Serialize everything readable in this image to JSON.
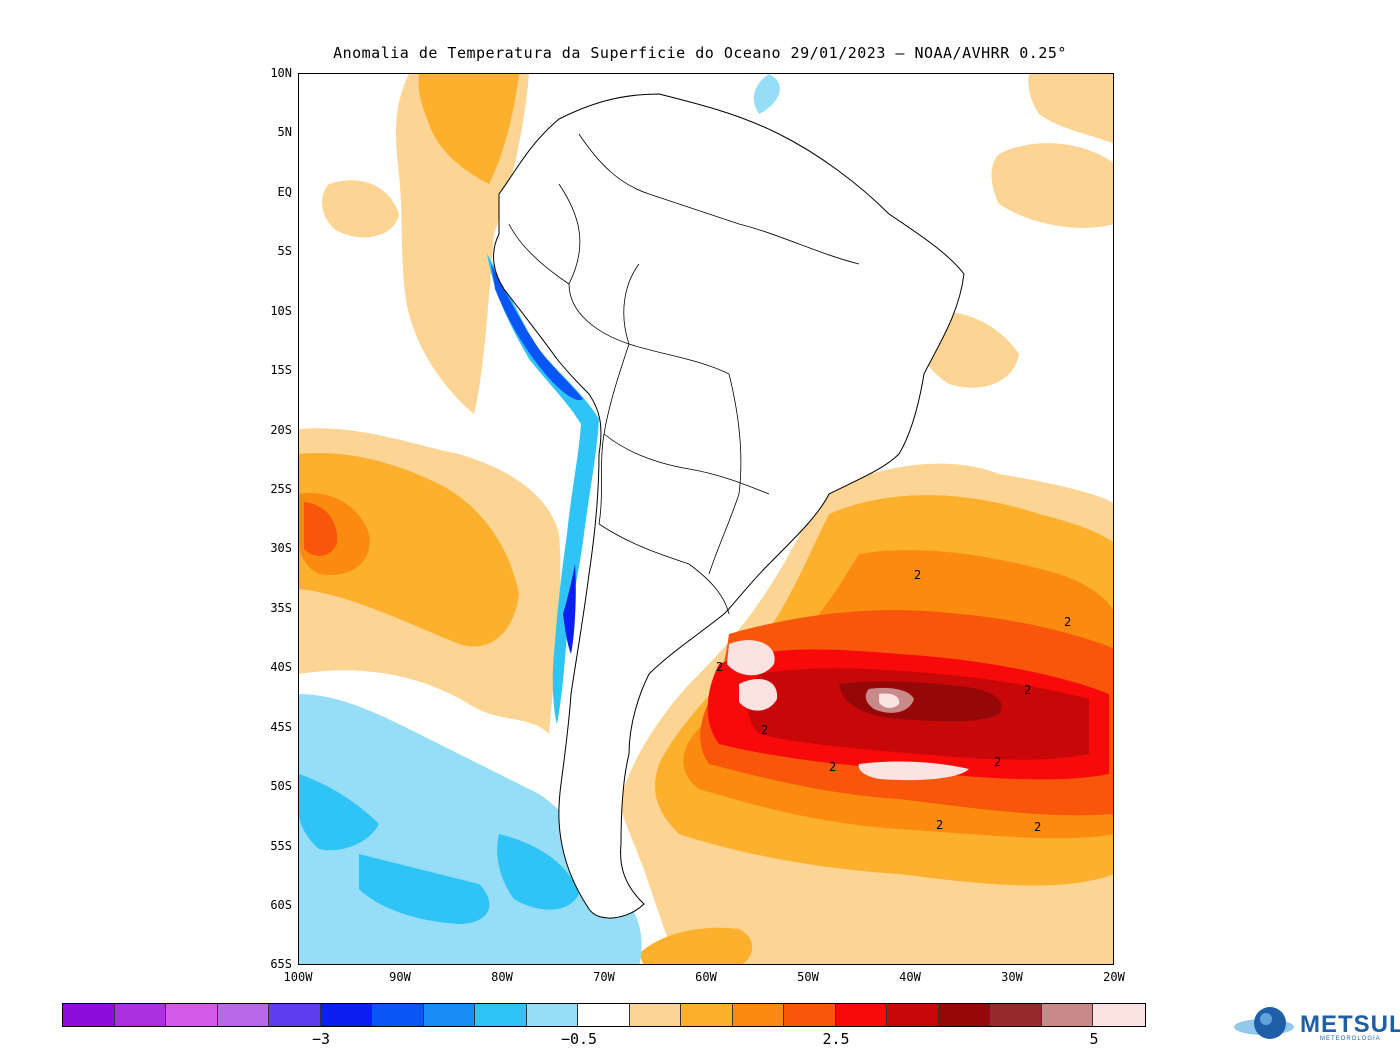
{
  "title": "Anomalia de Temperatura da Superficie do Oceano 29/01/2023 – NOAA/AVHRR 0.25°",
  "lat_labels": [
    "10N",
    "5N",
    "EQ",
    "5S",
    "10S",
    "15S",
    "20S",
    "25S",
    "30S",
    "35S",
    "40S",
    "45S",
    "50S",
    "55S",
    "60S",
    "65S"
  ],
  "lon_labels": [
    "100W",
    "90W",
    "80W",
    "70W",
    "60W",
    "50W",
    "40W",
    "30W",
    "20W"
  ],
  "colorbar": {
    "colors": [
      "#8f0ddc",
      "#ab31e0",
      "#d45ae8",
      "#b869e8",
      "#5e3cf0",
      "#0a1ff0",
      "#0a55f5",
      "#1a8cf5",
      "#2fc4f5",
      "#96def8",
      "#ffffff",
      "#fcd494",
      "#fcb02e",
      "#fb8b0f",
      "#f8560b",
      "#f80a0a",
      "#c80808",
      "#960808",
      "#962a2a",
      "#c88a88",
      "#fce2e0"
    ],
    "labels": [
      "−3",
      "−0.5",
      "2.5",
      "5"
    ]
  },
  "logo": {
    "name": "METSUL",
    "subtitle": "METEOROLOGIA"
  },
  "map": {
    "lat_range": [
      -65,
      10
    ],
    "lon_range": [
      -100,
      -20
    ],
    "contour_label": "2"
  }
}
